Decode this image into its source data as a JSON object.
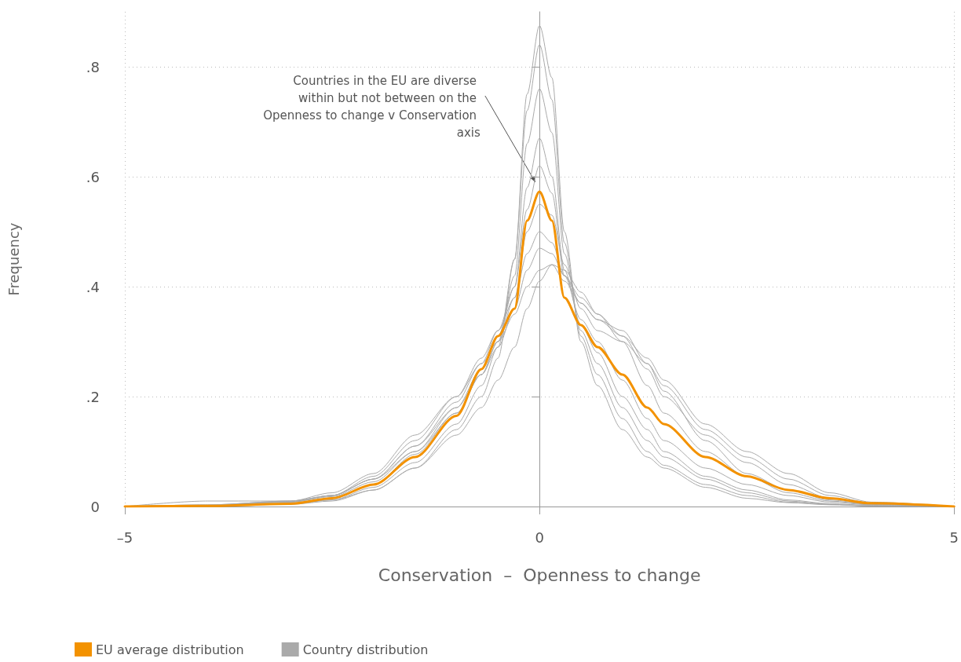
{
  "chart_data": {
    "type": "line",
    "xlabel": "Conservation  –  Openness to change",
    "ylabel": "Frequency",
    "x": [
      -5,
      -4,
      -3,
      -2.5,
      -2,
      -1.5,
      -1,
      -0.7,
      -0.5,
      -0.3,
      -0.15,
      0,
      0.15,
      0.3,
      0.5,
      0.7,
      1,
      1.3,
      1.5,
      2,
      2.5,
      3,
      3.5,
      4,
      5
    ],
    "xlim": [
      -5,
      5
    ],
    "xticks": [
      {
        "value": -5,
        "label": "–5"
      },
      0,
      5
    ],
    "ylim": [
      0,
      0.9
    ],
    "yticks": [
      0,
      {
        "value": 0.2,
        "label": ".2"
      },
      {
        "value": 0.4,
        "label": ".4"
      },
      {
        "value": 0.6,
        "label": ".6"
      },
      {
        "value": 0.8,
        "label": ".8"
      }
    ],
    "grid": true,
    "legend": "bottom left",
    "marker": "none",
    "line_style": "solid",
    "annotations": [
      {
        "text": "Countries in the EU are diverse within but not between on the Openness to change v Conservation axis",
        "x": -0.05,
        "y": 0.59
      }
    ],
    "series": [
      {
        "name": "EU average distribution",
        "color": "#f39200",
        "values": [
          0,
          0.001,
          0.005,
          0.015,
          0.04,
          0.09,
          0.165,
          0.25,
          0.31,
          0.36,
          0.52,
          0.573,
          0.52,
          0.38,
          0.33,
          0.29,
          0.24,
          0.18,
          0.15,
          0.09,
          0.055,
          0.03,
          0.015,
          0.006,
          0
        ]
      },
      {
        "name": "Country distribution",
        "color": "#aaaaaa",
        "values": [
          0,
          0.001,
          0.004,
          0.01,
          0.03,
          0.07,
          0.14,
          0.2,
          0.27,
          0.45,
          0.75,
          0.875,
          0.78,
          0.5,
          0.3,
          0.22,
          0.14,
          0.09,
          0.07,
          0.035,
          0.015,
          0.007,
          0.003,
          0.001,
          0
        ]
      },
      {
        "color": "#aaaaaa",
        "values": [
          0,
          0.001,
          0.005,
          0.012,
          0.035,
          0.08,
          0.15,
          0.22,
          0.29,
          0.45,
          0.72,
          0.84,
          0.74,
          0.48,
          0.31,
          0.24,
          0.16,
          0.1,
          0.075,
          0.04,
          0.02,
          0.008,
          0.004,
          0.001,
          0
        ]
      },
      {
        "color": "#aaaaaa",
        "values": [
          0,
          0.002,
          0.006,
          0.015,
          0.04,
          0.095,
          0.17,
          0.24,
          0.3,
          0.42,
          0.66,
          0.76,
          0.68,
          0.46,
          0.32,
          0.26,
          0.18,
          0.12,
          0.09,
          0.05,
          0.025,
          0.01,
          0.004,
          0.001,
          0
        ]
      },
      {
        "color": "#aaaaaa",
        "values": [
          0,
          0.002,
          0.008,
          0.018,
          0.045,
          0.1,
          0.18,
          0.25,
          0.31,
          0.4,
          0.58,
          0.67,
          0.6,
          0.43,
          0.33,
          0.28,
          0.2,
          0.14,
          0.1,
          0.055,
          0.03,
          0.012,
          0.005,
          0.002,
          0
        ]
      },
      {
        "color": "#aaaaaa",
        "values": [
          0,
          0.003,
          0.01,
          0.02,
          0.05,
          0.11,
          0.19,
          0.26,
          0.32,
          0.4,
          0.54,
          0.62,
          0.57,
          0.42,
          0.34,
          0.3,
          0.23,
          0.16,
          0.12,
          0.07,
          0.04,
          0.02,
          0.008,
          0.003,
          0
        ]
      },
      {
        "color": "#aaaaaa",
        "values": [
          0,
          0.003,
          0.01,
          0.02,
          0.05,
          0.1,
          0.17,
          0.24,
          0.3,
          0.38,
          0.5,
          0.55,
          0.53,
          0.44,
          0.36,
          0.32,
          0.3,
          0.22,
          0.17,
          0.1,
          0.055,
          0.025,
          0.01,
          0.004,
          0
        ]
      },
      {
        "color": "#aaaaaa",
        "values": [
          0,
          0.01,
          0.01,
          0.025,
          0.06,
          0.13,
          0.2,
          0.27,
          0.32,
          0.38,
          0.46,
          0.5,
          0.48,
          0.42,
          0.37,
          0.34,
          0.32,
          0.26,
          0.21,
          0.12,
          0.06,
          0.03,
          0.012,
          0.004,
          0
        ]
      },
      {
        "color": "#aaaaaa",
        "values": [
          0,
          0.002,
          0.008,
          0.02,
          0.05,
          0.11,
          0.18,
          0.24,
          0.29,
          0.36,
          0.43,
          0.47,
          0.46,
          0.42,
          0.38,
          0.35,
          0.31,
          0.25,
          0.2,
          0.13,
          0.08,
          0.04,
          0.015,
          0.005,
          0
        ]
      },
      {
        "color": "#aaaaaa",
        "values": [
          0,
          0.001,
          0.005,
          0.012,
          0.03,
          0.07,
          0.13,
          0.18,
          0.23,
          0.29,
          0.36,
          0.41,
          0.44,
          0.43,
          0.39,
          0.35,
          0.3,
          0.26,
          0.22,
          0.14,
          0.09,
          0.05,
          0.02,
          0.006,
          0
        ]
      },
      {
        "color": "#aaaaaa",
        "values": [
          0,
          0.002,
          0.009,
          0.02,
          0.055,
          0.12,
          0.2,
          0.26,
          0.3,
          0.35,
          0.4,
          0.43,
          0.44,
          0.41,
          0.37,
          0.34,
          0.31,
          0.27,
          0.23,
          0.15,
          0.1,
          0.06,
          0.025,
          0.008,
          0
        ]
      }
    ]
  }
}
